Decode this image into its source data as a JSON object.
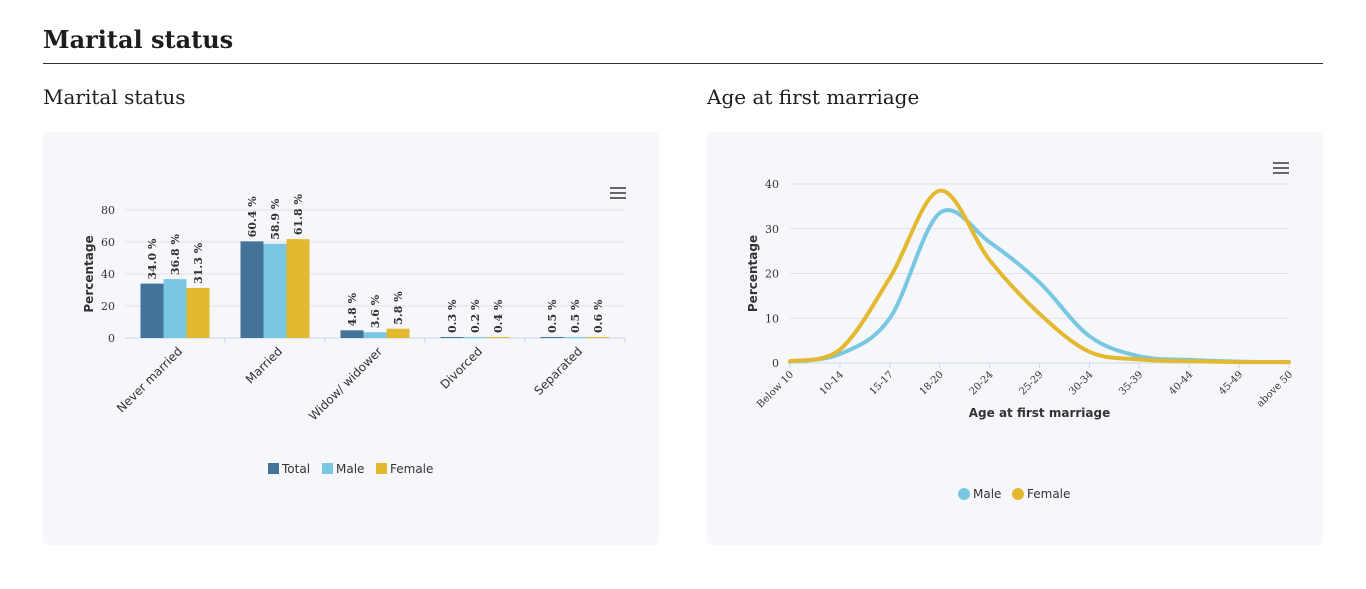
{
  "page": {
    "section_title": "Marital status"
  },
  "charts": {
    "marital": {
      "heading": "Marital status"
    },
    "age": {
      "heading": "Age at first marriage"
    }
  },
  "icons": {
    "menu": "hamburger-menu-icon",
    "legend_marker_bar": "square",
    "legend_marker_line": "circle"
  },
  "chart_data": [
    {
      "type": "bar",
      "title": "Marital status",
      "categories": [
        "Never married",
        "Married",
        "Widow/ widower",
        "Divorced",
        "Separated"
      ],
      "series": [
        {
          "name": "Total",
          "color": "#44739a",
          "values": [
            34.0,
            60.4,
            4.8,
            0.3,
            0.5
          ]
        },
        {
          "name": "Male",
          "color": "#7ac7e1",
          "values": [
            36.8,
            58.9,
            3.6,
            0.2,
            0.5
          ]
        },
        {
          "name": "Female",
          "color": "#e3b930",
          "values": [
            31.3,
            61.8,
            5.8,
            0.4,
            0.6
          ]
        }
      ],
      "data_labels": [
        [
          "34.0 %",
          "60.4 %",
          "4.8 %",
          "0.3 %",
          "0.5 %"
        ],
        [
          "36.8 %",
          "58.9 %",
          "3.6 %",
          "0.2 %",
          "0.5 %"
        ],
        [
          "31.3 %",
          "61.8 %",
          "5.8 %",
          "0.4 %",
          "0.6 %"
        ]
      ],
      "xlabel": "",
      "ylabel": "Percentage",
      "ylim": [
        0,
        80
      ],
      "yticks": [
        "0",
        "20",
        "40",
        "60",
        "80"
      ],
      "grid": true,
      "legend": "bottom"
    },
    {
      "type": "line",
      "title": "Age at first marriage",
      "categories": [
        "Below 10",
        "10-14",
        "15-17",
        "18-20",
        "20-24",
        "25-29",
        "30-34",
        "35-39",
        "40-44",
        "45-49",
        "above 50"
      ],
      "series": [
        {
          "name": "Male",
          "color": "#7ac7e1",
          "values": [
            0.3,
            2.0,
            10.0,
            33.5,
            27.0,
            18.0,
            6.0,
            1.5,
            0.7,
            0.3,
            0.2
          ]
        },
        {
          "name": "Female",
          "color": "#e3b930",
          "values": [
            0.4,
            3.0,
            19.0,
            38.5,
            23.0,
            11.0,
            2.5,
            0.8,
            0.4,
            0.2,
            0.2
          ]
        }
      ],
      "xlabel": "Age at first marriage",
      "ylabel": "Percentage",
      "ylim": [
        0,
        40
      ],
      "yticks": [
        "0",
        "10",
        "20",
        "30",
        "40"
      ],
      "grid": true,
      "legend": "bottom"
    }
  ]
}
